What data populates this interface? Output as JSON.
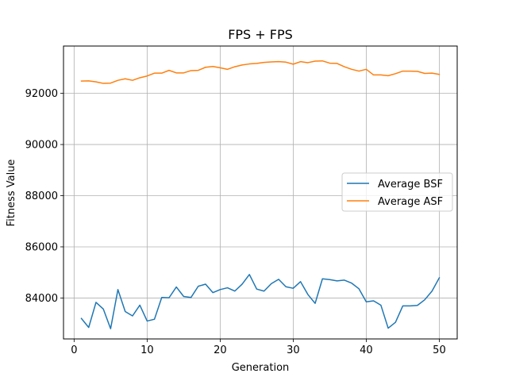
{
  "chart_data": {
    "type": "line",
    "title": "FPS + FPS",
    "xlabel": "Generation",
    "ylabel": "Fitness Value",
    "xlim": [
      -1.45,
      52.45
    ],
    "ylim": [
      82400,
      93850
    ],
    "xticks": [
      0,
      10,
      20,
      30,
      40,
      50
    ],
    "yticks": [
      84000,
      86000,
      88000,
      90000,
      92000
    ],
    "ytick_labels": [
      "84000",
      "86000",
      "88000",
      "90000",
      "92000"
    ],
    "grid": true,
    "legend_position": "center-right",
    "x": [
      1,
      2,
      3,
      4,
      5,
      6,
      7,
      8,
      9,
      10,
      11,
      12,
      13,
      14,
      15,
      16,
      17,
      18,
      19,
      20,
      21,
      22,
      23,
      24,
      25,
      26,
      27,
      28,
      29,
      30,
      31,
      32,
      33,
      34,
      35,
      36,
      37,
      38,
      39,
      40,
      41,
      42,
      43,
      44,
      45,
      46,
      47,
      48,
      49,
      50
    ],
    "series": [
      {
        "name": "Average BSF",
        "color": "#1f77b4",
        "values": [
          83200,
          82850,
          83830,
          83570,
          82800,
          84330,
          83470,
          83300,
          83720,
          83100,
          83170,
          84020,
          84010,
          84430,
          84060,
          84020,
          84460,
          84540,
          84210,
          84330,
          84400,
          84270,
          84540,
          84920,
          84350,
          84270,
          84560,
          84730,
          84440,
          84380,
          84640,
          84140,
          83790,
          84750,
          84720,
          84670,
          84700,
          84580,
          84360,
          83850,
          83890,
          83720,
          82820,
          83050,
          83690,
          83690,
          83710,
          83930,
          84270,
          84790
        ]
      },
      {
        "name": "Average ASF",
        "color": "#ff7f0e",
        "values": [
          92480,
          92490,
          92450,
          92390,
          92400,
          92510,
          92570,
          92510,
          92610,
          92680,
          92790,
          92790,
          92900,
          92800,
          92800,
          92890,
          92900,
          93020,
          93050,
          93000,
          92940,
          93040,
          93110,
          93150,
          93170,
          93210,
          93230,
          93240,
          93220,
          93140,
          93240,
          93200,
          93260,
          93270,
          93180,
          93170,
          93040,
          92940,
          92870,
          92940,
          92720,
          92720,
          92690,
          92770,
          92870,
          92870,
          92860,
          92780,
          92790,
          92740
        ]
      }
    ]
  }
}
